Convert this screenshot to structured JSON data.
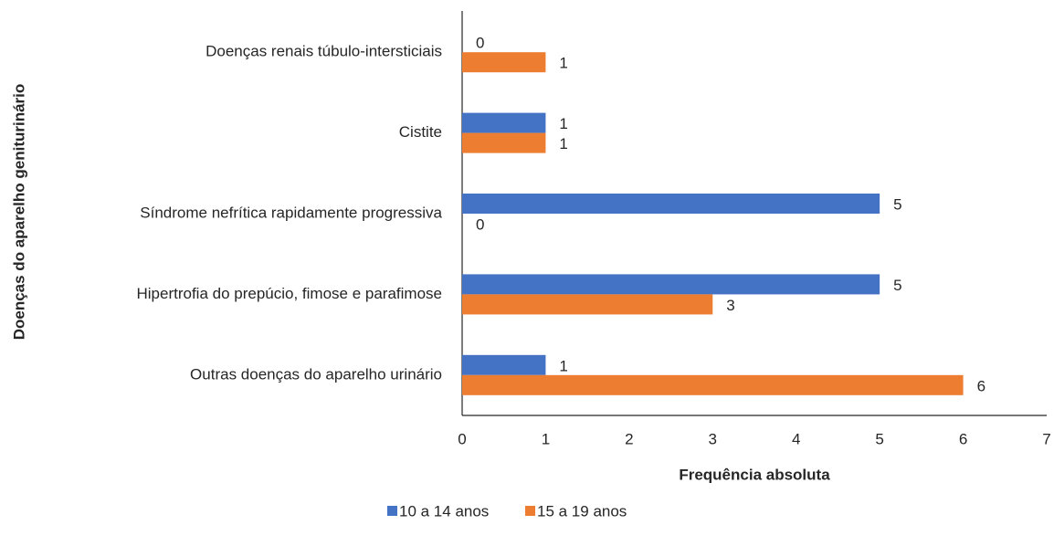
{
  "chart_data": {
    "type": "bar",
    "orientation": "horizontal",
    "x_label": "Frequência absoluta",
    "y_label": "Doenças do aparelho geniturinário",
    "categories": [
      "Doenças renais túbulo-intersticiais",
      "Cistite",
      "Síndrome nefrítica rapidamente progressiva",
      "Hipertrofia do prepúcio, fimose e parafimose",
      "Outras doenças do aparelho urinário"
    ],
    "series": [
      {
        "name": "10 a 14 anos",
        "color": "#4472c4",
        "values": [
          0,
          1,
          5,
          5,
          1
        ]
      },
      {
        "name": "15 a 19 anos",
        "color": "#ed7d31",
        "values": [
          1,
          1,
          0,
          3,
          6
        ]
      }
    ],
    "xlim": [
      0,
      7
    ],
    "xticks": [
      0,
      1,
      2,
      3,
      4,
      5,
      6,
      7
    ],
    "grid": false,
    "legend": "bottom"
  }
}
